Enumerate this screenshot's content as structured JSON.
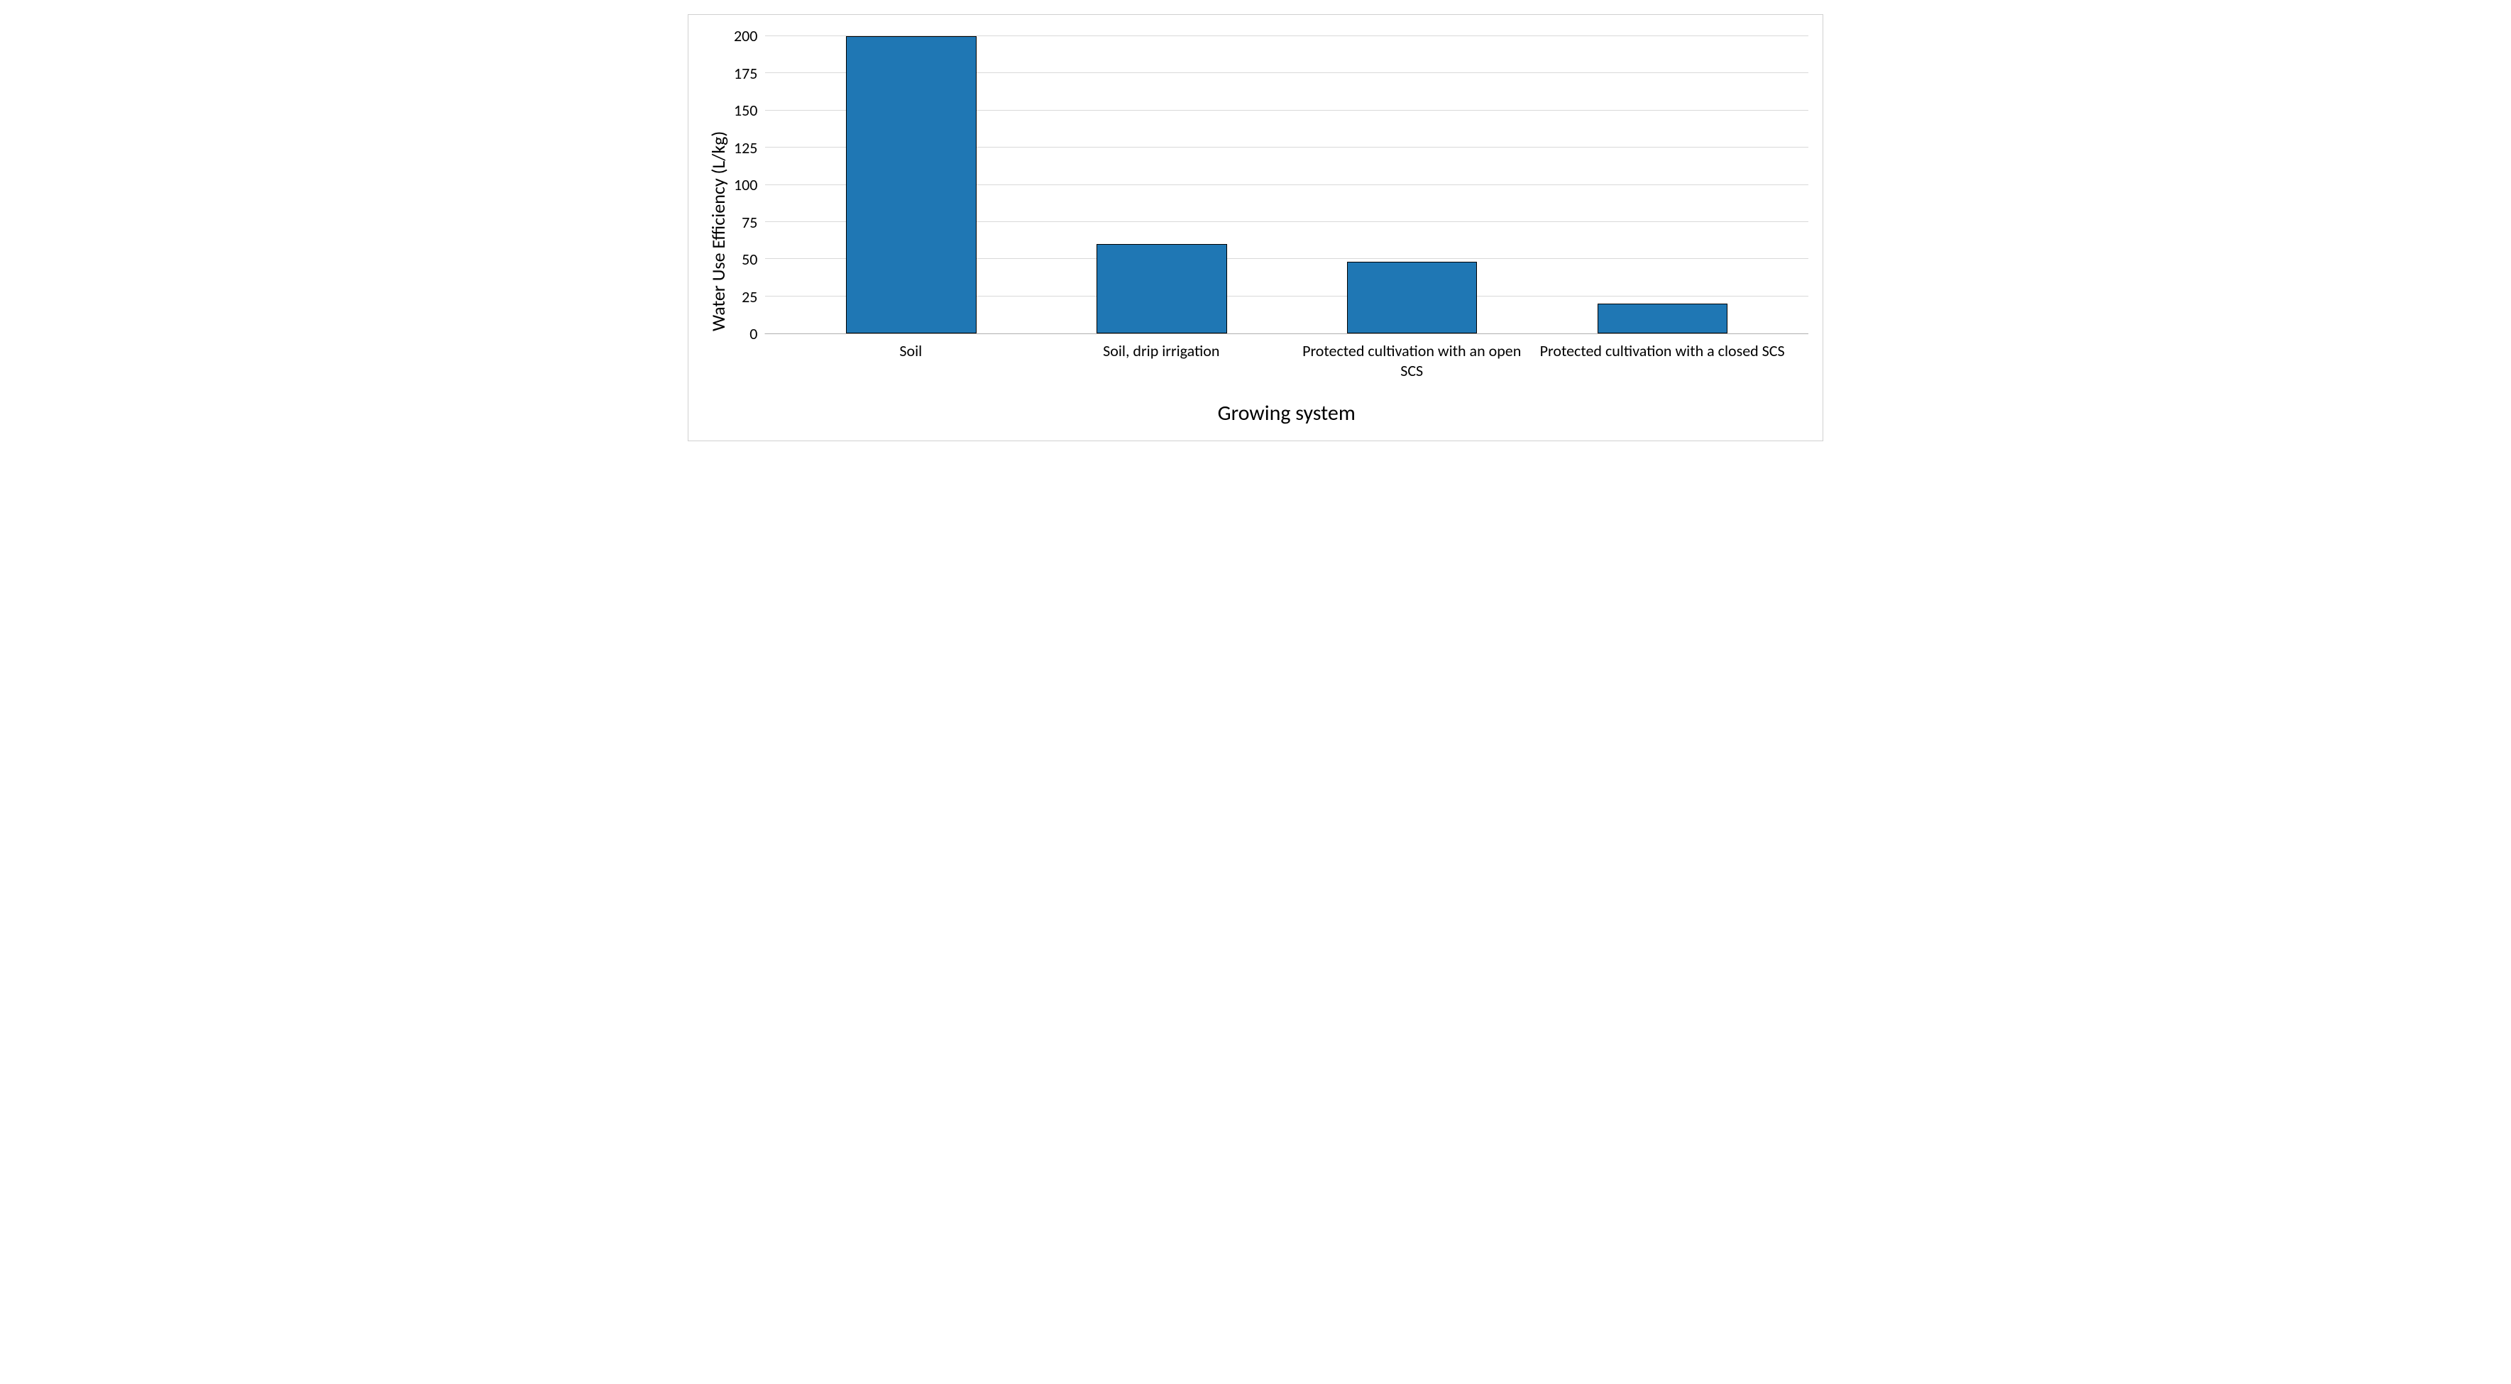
{
  "chart": {
    "type": "bar",
    "ylabel": "Water Use Efficiency  (L/kg)",
    "xlabel": "Growing system",
    "ylim": [
      0,
      200
    ],
    "ytick_step": 25,
    "yticks": [
      200,
      175,
      150,
      125,
      100,
      75,
      50,
      25,
      0
    ],
    "categories": [
      "Soil",
      "Soil, drip irrigation",
      "Protected cultivation with an open SCS",
      "Protected cultivation with a closed SCS"
    ],
    "values": [
      200,
      60,
      48,
      20
    ],
    "bar_color": "#1f77b4",
    "bar_border_color": "#000000",
    "bar_width_ratio": 0.52,
    "background_color": "#ffffff",
    "grid_color": "#d9d9d9",
    "axis_line_color": "#b0b0b0",
    "container_border_color": "#d0d0d0",
    "ylabel_fontsize": 26,
    "xlabel_fontsize": 30,
    "tick_fontsize": 22,
    "text_color": "#000000",
    "font_family": "Calibri, Arial, sans-serif"
  }
}
